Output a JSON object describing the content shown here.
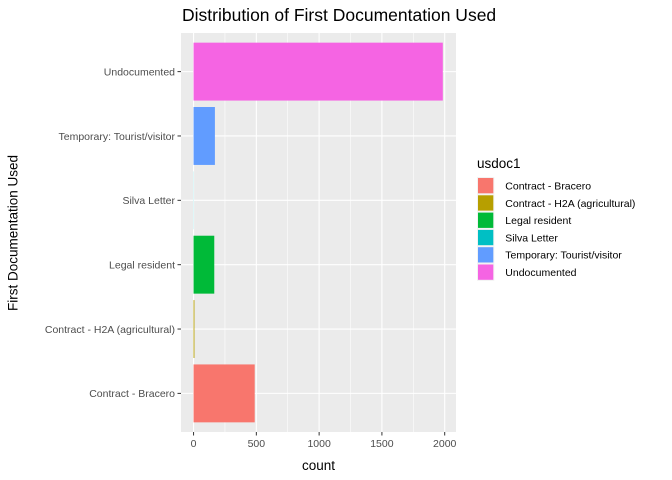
{
  "chart_data": {
    "type": "bar",
    "orientation": "horizontal",
    "title": "Distribution of First Documentation Used",
    "xlabel": "count",
    "ylabel": "First Documentation Used",
    "categories": [
      "Contract - Bracero",
      "Contract - H2A (agricultural)",
      "Legal resident",
      "Silva Letter",
      "Temporary: Tourist/visitor",
      "Undocumented"
    ],
    "values": [
      487,
      7,
      165,
      1,
      170,
      1985
    ],
    "colors": [
      "#F8766D",
      "#B79F00",
      "#00BA38",
      "#00BFC4",
      "#619CFF",
      "#F564E3"
    ],
    "xlim": [
      -100,
      2090
    ],
    "xticks": [
      0,
      500,
      1000,
      1500,
      2000
    ],
    "grid": true,
    "legend": {
      "title": "usdoc1",
      "position": "right",
      "entries": [
        "Contract - Bracero",
        "Contract - H2A (agricultural)",
        "Legal resident",
        "Silva Letter",
        "Temporary: Tourist/visitor",
        "Undocumented"
      ]
    }
  }
}
